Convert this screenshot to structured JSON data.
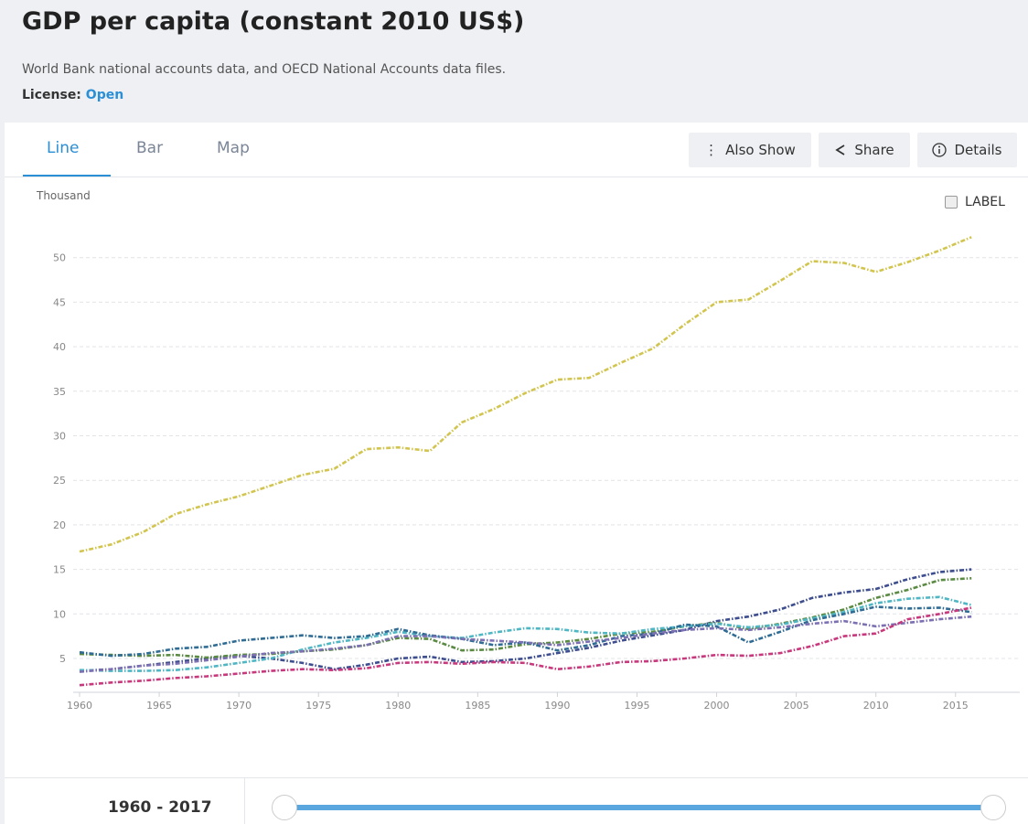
{
  "header": {
    "title": "GDP per capita (constant 2010 US$)",
    "source": "World Bank national accounts data, and OECD National Accounts data files.",
    "license_label": "License:",
    "license_value": "Open"
  },
  "tabs": [
    "Line",
    "Bar",
    "Map"
  ],
  "buttons": [
    "Also Show",
    "Share",
    "Details"
  ],
  "label_toggle": "LABEL",
  "range": "1960 - 2017",
  "chart_data": {
    "type": "line",
    "y_unit": "Thousand",
    "x": [
      1960,
      1962,
      1964,
      1966,
      1968,
      1970,
      1972,
      1974,
      1976,
      1978,
      1980,
      1982,
      1984,
      1986,
      1988,
      1990,
      1992,
      1994,
      1996,
      1998,
      2000,
      2002,
      2004,
      2006,
      2008,
      2010,
      2012,
      2014,
      2016
    ],
    "xlim": [
      1960,
      2018
    ],
    "xticks": [
      1960,
      1965,
      1970,
      1975,
      1980,
      1985,
      1990,
      1995,
      2000,
      2005,
      2010,
      2015
    ],
    "ylim": [
      1.2,
      55
    ],
    "yticks": [
      5,
      10,
      15,
      20,
      25,
      30,
      35,
      40,
      45,
      50
    ],
    "grid": true,
    "series": [
      {
        "color": "#d2c54f",
        "values": [
          17,
          17.8,
          19.2,
          21.2,
          22.3,
          23.2,
          24.4,
          25.6,
          26.3,
          28.5,
          28.7,
          28.3,
          31.5,
          33,
          34.8,
          36.3,
          36.5,
          38.2,
          39.8,
          42.5,
          45,
          45.3,
          47.4,
          49.6,
          49.4,
          48.4,
          49.5,
          50.8,
          52.3
        ]
      },
      {
        "color": "#3d4d8e",
        "values": [
          3.6,
          3.8,
          4.2,
          4.6,
          5.0,
          5.3,
          5.0,
          4.5,
          3.8,
          4.3,
          5.0,
          5.2,
          4.6,
          4.7,
          5.0,
          5.6,
          6.2,
          7.0,
          7.6,
          8.2,
          9.2,
          9.7,
          10.5,
          11.8,
          12.4,
          12.8,
          13.9,
          14.7,
          15.0
        ]
      },
      {
        "color": "#5b8a43",
        "values": [
          5.5,
          5.4,
          5.3,
          5.4,
          5.1,
          5.4,
          5.5,
          5.8,
          6.0,
          6.5,
          7.3,
          7.2,
          5.9,
          6.0,
          6.6,
          6.8,
          7.2,
          7.8,
          8.0,
          8.6,
          9.0,
          8.3,
          8.9,
          9.6,
          10.5,
          11.8,
          12.7,
          13.8,
          14.0
        ]
      },
      {
        "color": "#4fb6c4",
        "values": [
          3.7,
          3.6,
          3.6,
          3.7,
          4.0,
          4.5,
          5.0,
          6.0,
          6.8,
          7.3,
          8.0,
          7.5,
          7.3,
          7.9,
          8.4,
          8.3,
          7.9,
          7.8,
          8.3,
          8.6,
          8.9,
          8.5,
          8.8,
          9.5,
          10.2,
          11.2,
          11.7,
          11.9,
          11.0
        ]
      },
      {
        "color": "#2f6b93",
        "values": [
          5.7,
          5.3,
          5.5,
          6.1,
          6.3,
          7.0,
          7.3,
          7.6,
          7.3,
          7.5,
          8.3,
          7.6,
          7.2,
          6.5,
          6.8,
          5.9,
          6.5,
          7.5,
          7.8,
          8.8,
          8.6,
          6.8,
          8.0,
          9.3,
          10.0,
          10.8,
          10.6,
          10.7,
          10.2
        ]
      },
      {
        "color": "#7c70b2",
        "values": [
          3.5,
          3.8,
          4.2,
          4.4,
          4.8,
          5.2,
          5.6,
          5.8,
          6.1,
          6.5,
          7.5,
          7.5,
          7.2,
          7.0,
          6.8,
          6.5,
          6.9,
          7.3,
          7.8,
          8.2,
          8.4,
          8.2,
          8.5,
          8.9,
          9.2,
          8.6,
          9.0,
          9.4,
          9.7
        ]
      },
      {
        "color": "#c8387c",
        "values": [
          2.0,
          2.3,
          2.5,
          2.8,
          3.0,
          3.3,
          3.6,
          3.8,
          3.7,
          3.9,
          4.5,
          4.6,
          4.4,
          4.6,
          4.5,
          3.8,
          4.1,
          4.6,
          4.7,
          5.0,
          5.4,
          5.3,
          5.6,
          6.4,
          7.5,
          7.8,
          9.4,
          10.0,
          10.7
        ]
      }
    ]
  }
}
